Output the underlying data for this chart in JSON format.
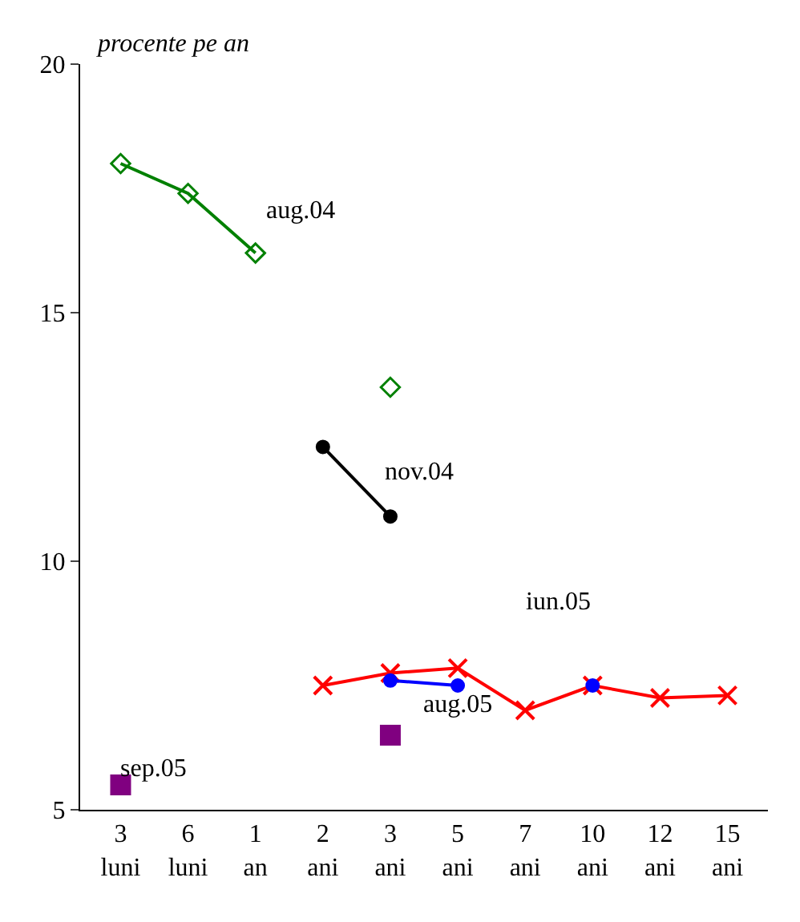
{
  "chart_data": {
    "type": "line",
    "ylabel": "procente pe an",
    "categories": [
      "3\nluni",
      "6\nluni",
      "1\nan",
      "2\nani",
      "3\nani",
      "5\nani",
      "7\nani",
      "10\nani",
      "12\nani",
      "15\nani"
    ],
    "ylim": [
      5,
      20
    ],
    "yticks": [
      5,
      10,
      15,
      20
    ],
    "legend": false,
    "series": [
      {
        "name": "aug.04",
        "color": "#008000",
        "marker": "diamond",
        "values": [
          18.0,
          17.4,
          16.2,
          null,
          13.5,
          null,
          null,
          null,
          null,
          null
        ]
      },
      {
        "name": "nov.04",
        "color": "#000000",
        "marker": "circle",
        "values": [
          null,
          null,
          null,
          12.3,
          10.9,
          null,
          null,
          null,
          null,
          null
        ]
      },
      {
        "name": "iun.05",
        "color": "#ff0000",
        "marker": "cross",
        "values": [
          null,
          null,
          null,
          7.5,
          7.75,
          7.85,
          7.0,
          7.5,
          7.25,
          7.3
        ]
      },
      {
        "name": "aug.05",
        "color": "#0000ff",
        "marker": "circle",
        "values": [
          null,
          null,
          null,
          null,
          7.6,
          7.5,
          null,
          7.5,
          null,
          null
        ]
      },
      {
        "name": "sep.05",
        "color": "#800080",
        "marker": "square",
        "type": "scatter",
        "values": [
          5.5,
          null,
          null,
          null,
          6.5,
          null,
          null,
          null,
          null,
          null
        ]
      }
    ]
  }
}
